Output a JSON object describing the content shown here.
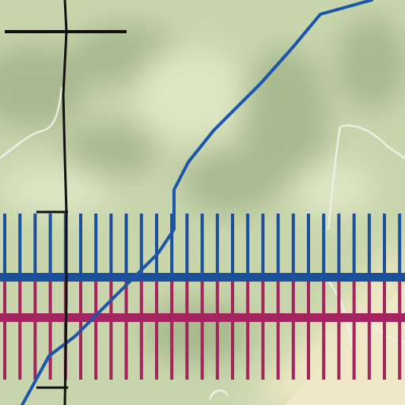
{
  "map": {
    "colors": {
      "terrain_base": "#c9d6ad",
      "terrain_light": "#dfe6c5",
      "terrain_dark": "#a8b98f",
      "sand": "#efe7c5",
      "stream": "#eef1ea",
      "route_blue": "#1c4f9c",
      "route_magenta": "#a3245f",
      "route_line": "#1b56a8",
      "boundary": "#111111"
    },
    "icons": [
      "hillshade-terrain",
      "stream-line",
      "transmission-corridor-symbol",
      "boundary-line"
    ]
  }
}
